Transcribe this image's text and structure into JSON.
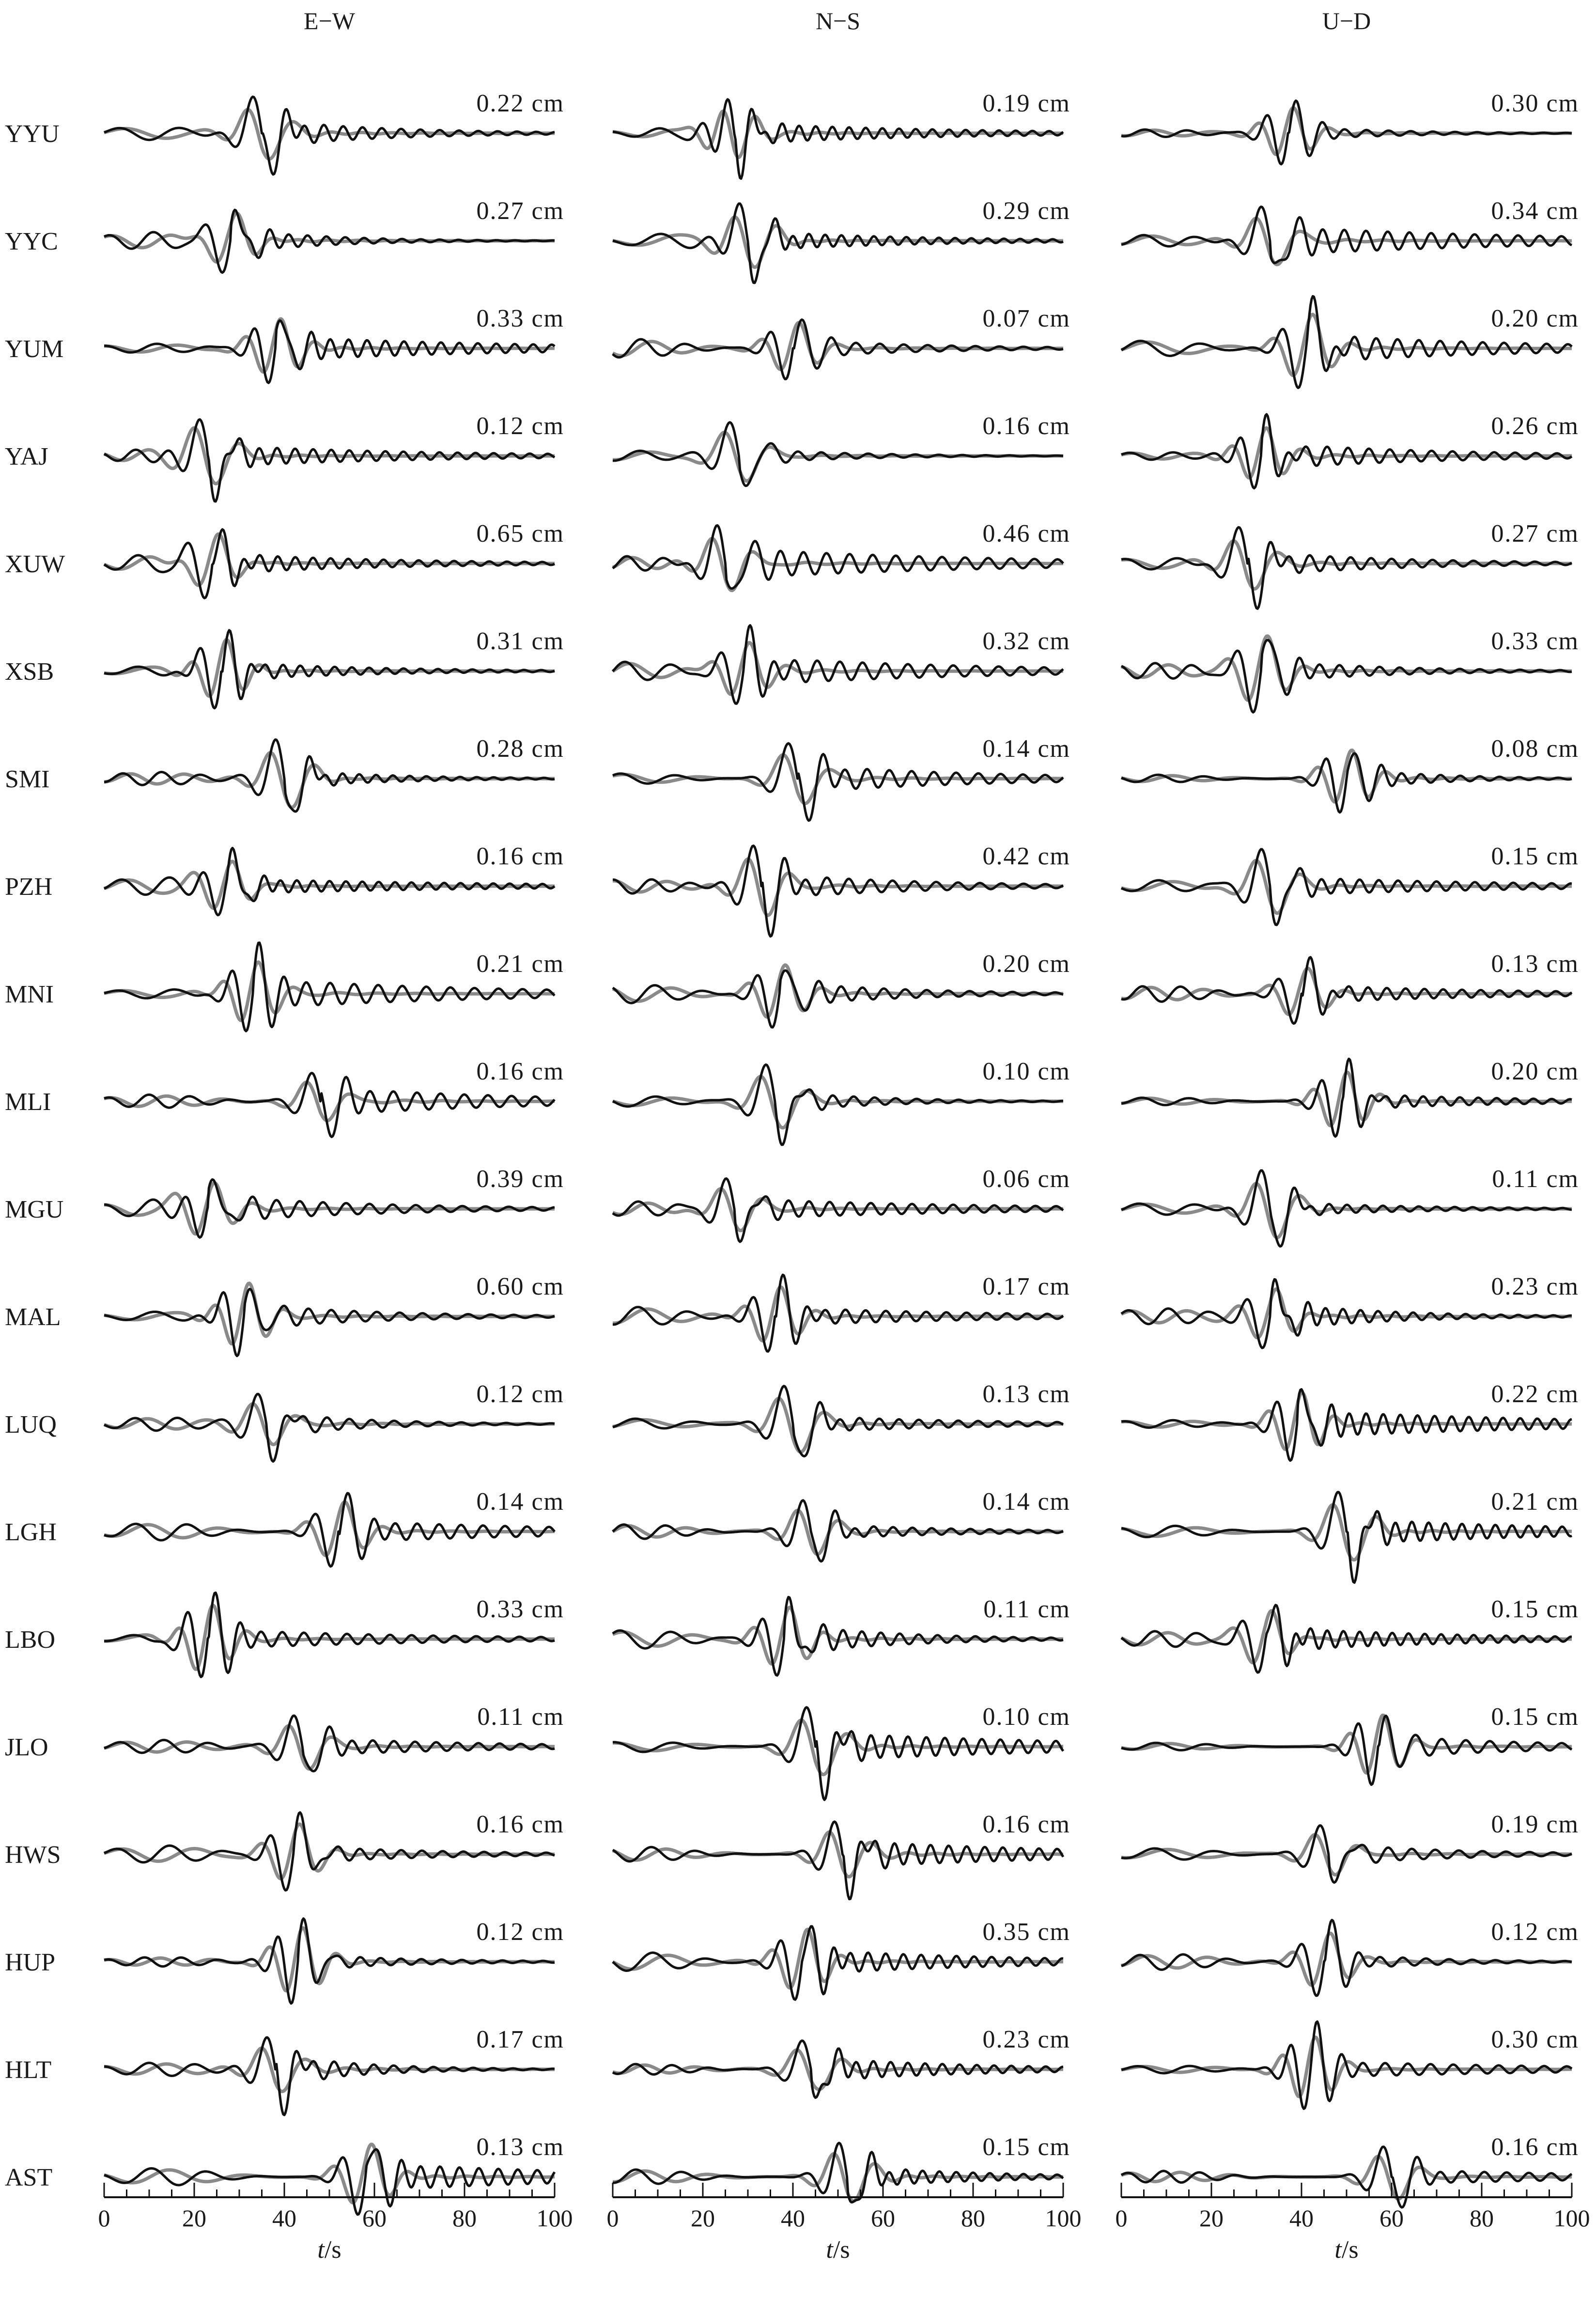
{
  "chart_data": {
    "type": "line",
    "description_free": true,
    "panels": [
      {
        "component": "E−W"
      },
      {
        "component": "N−S"
      },
      {
        "component": "U−D"
      }
    ],
    "x_axis": {
      "label_italic": "t",
      "label_unit": "/s",
      "ticks": [
        0,
        20,
        40,
        60,
        80,
        100
      ],
      "range": [
        0,
        100
      ]
    },
    "stations": [
      "YYU",
      "YYC",
      "YUM",
      "YAJ",
      "XUW",
      "XSB",
      "SMI",
      "PZH",
      "MNI",
      "MLI",
      "MGU",
      "MAL",
      "LUQ",
      "LGH",
      "LBO",
      "JLO",
      "HWS",
      "HUP",
      "HLT",
      "AST"
    ],
    "amplitudes": [
      [
        "0.22 cm",
        "0.19 cm",
        "0.30 cm"
      ],
      [
        "0.27 cm",
        "0.29 cm",
        "0.34 cm"
      ],
      [
        "0.33 cm",
        "0.07 cm",
        "0.20 cm"
      ],
      [
        "0.12 cm",
        "0.16 cm",
        "0.26 cm"
      ],
      [
        "0.65 cm",
        "0.46 cm",
        "0.27 cm"
      ],
      [
        "0.31 cm",
        "0.32 cm",
        "0.33 cm"
      ],
      [
        "0.28 cm",
        "0.14 cm",
        "0.08 cm"
      ],
      [
        "0.16 cm",
        "0.42 cm",
        "0.15 cm"
      ],
      [
        "0.21 cm",
        "0.20 cm",
        "0.13 cm"
      ],
      [
        "0.16 cm",
        "0.10 cm",
        "0.20 cm"
      ],
      [
        "0.39 cm",
        "0.06 cm",
        "0.11 cm"
      ],
      [
        "0.60 cm",
        "0.17 cm",
        "0.23 cm"
      ],
      [
        "0.12 cm",
        "0.13 cm",
        "0.22 cm"
      ],
      [
        "0.14 cm",
        "0.14 cm",
        "0.21 cm"
      ],
      [
        "0.33 cm",
        "0.11 cm",
        "0.15 cm"
      ],
      [
        "0.11 cm",
        "0.10 cm",
        "0.15 cm"
      ],
      [
        "0.16 cm",
        "0.16 cm",
        "0.19 cm"
      ],
      [
        "0.12 cm",
        "0.35 cm",
        "0.12 cm"
      ],
      [
        "0.17 cm",
        "0.23 cm",
        "0.30 cm"
      ],
      [
        "0.13 cm",
        "0.15 cm",
        "0.16 cm"
      ]
    ],
    "arrival_times_s": [
      [
        35,
        27,
        37
      ],
      [
        28,
        30,
        33
      ],
      [
        38,
        40,
        41
      ],
      [
        23,
        28,
        31
      ],
      [
        24,
        25,
        28
      ],
      [
        26,
        29,
        31
      ],
      [
        40,
        41,
        50
      ],
      [
        27,
        33,
        33
      ],
      [
        33,
        37,
        40
      ],
      [
        48,
        36,
        49
      ],
      [
        23,
        27,
        33
      ],
      [
        31,
        36,
        33
      ],
      [
        36,
        40,
        39
      ],
      [
        52,
        44,
        50
      ],
      [
        23,
        38,
        32
      ],
      [
        44,
        45,
        57
      ],
      [
        42,
        51,
        46
      ],
      [
        43,
        42,
        45
      ],
      [
        38,
        44,
        42
      ],
      [
        58,
        52,
        60
      ]
    ],
    "series": [
      {
        "color": "#111111"
      },
      {
        "color": "#8a8a8a"
      }
    ]
  }
}
